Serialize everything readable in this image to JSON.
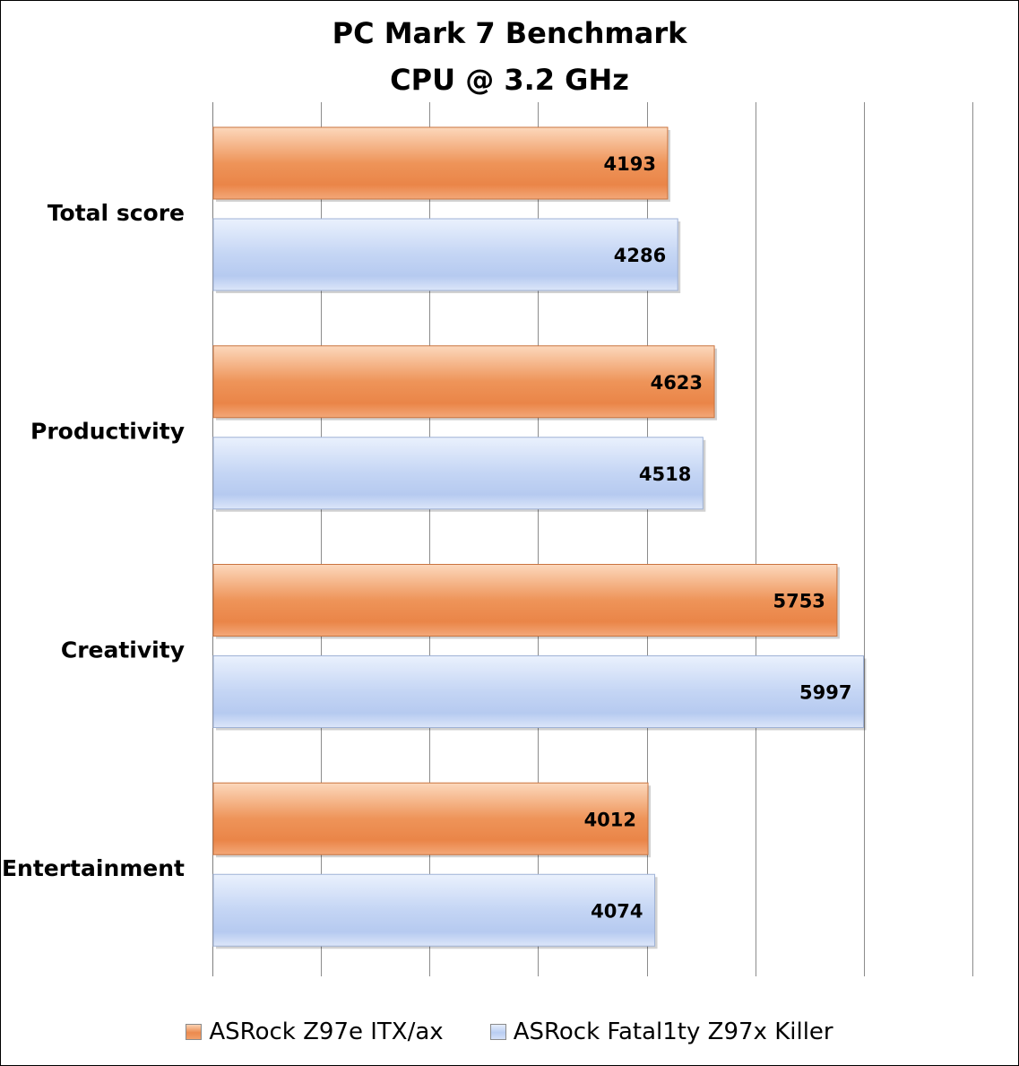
{
  "chart_data": {
    "type": "bar",
    "orientation": "horizontal",
    "title": "PC Mark 7 Benchmark",
    "subtitle": "CPU @ 3.2 GHz",
    "categories": [
      "Total score",
      "Productivity",
      "Creativity",
      "Entertainment"
    ],
    "series": [
      {
        "name": "ASRock Z97e ITX/ax",
        "color": "#ec8a4e",
        "values": [
          4193,
          4623,
          5753,
          4012
        ]
      },
      {
        "name": "ASRock Fatal1ty Z97x Killer",
        "color": "#b9cdf2",
        "values": [
          4286,
          4518,
          5997,
          4074
        ]
      }
    ],
    "xlim": [
      0,
      7000
    ],
    "x_major_step": 1000,
    "grid": true,
    "tick_labels_shown": false,
    "data_labels": true,
    "legend_position": "bottom"
  }
}
